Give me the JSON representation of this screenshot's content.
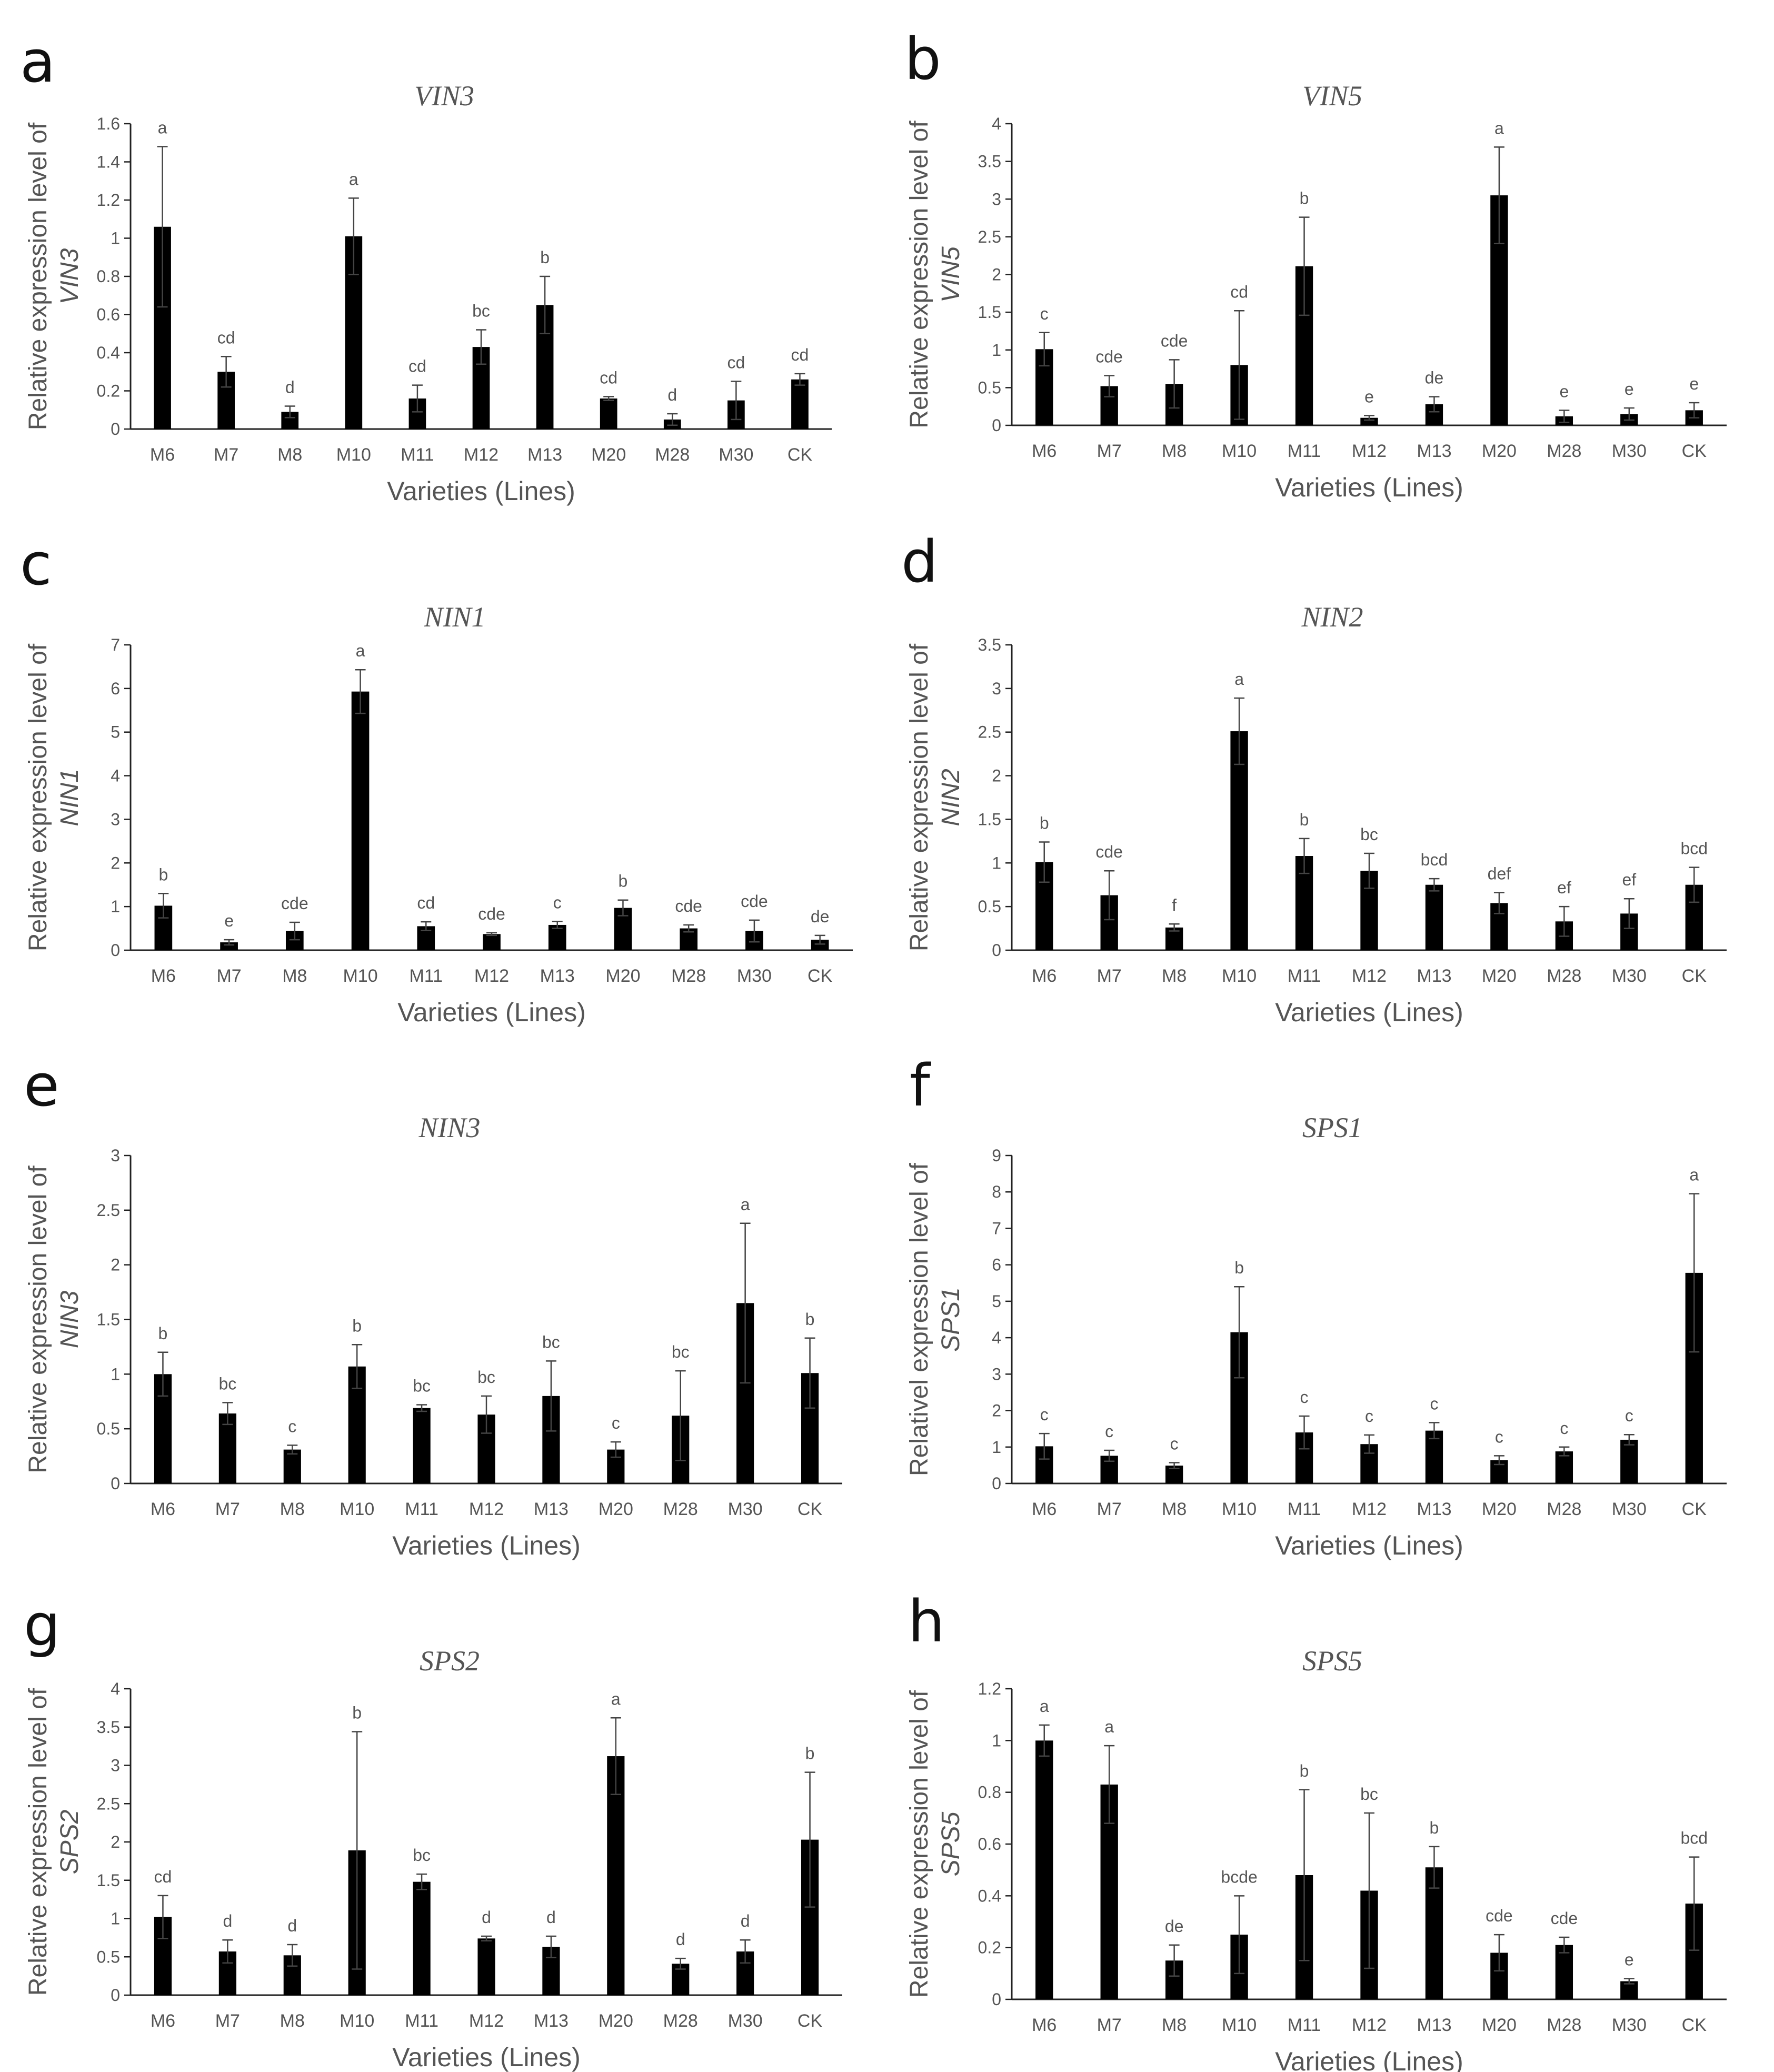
{
  "chart_data": [
    {
      "type": "bar",
      "panel": "a",
      "title": "VIN3",
      "ylabel_line1": "Relative expression level of",
      "ylabel_line2": "VIN3",
      "xlabel": "Varieties (Lines)",
      "categories": [
        "M6",
        "M7",
        "M8",
        "M10",
        "M11",
        "M12",
        "M13",
        "M20",
        "M28",
        "M30",
        "CK"
      ],
      "values": [
        1.06,
        0.3,
        0.09,
        1.01,
        0.16,
        0.43,
        0.65,
        0.16,
        0.05,
        0.15,
        0.26
      ],
      "errors": [
        0.42,
        0.08,
        0.03,
        0.2,
        0.07,
        0.09,
        0.15,
        0.01,
        0.03,
        0.1,
        0.03
      ],
      "significance": [
        "a",
        "cd",
        "d",
        "a",
        "cd",
        "bc",
        "b",
        "cd",
        "d",
        "cd",
        "cd"
      ],
      "ylim": [
        0,
        1.6
      ],
      "yticks": [
        0,
        0.2,
        0.4,
        0.6,
        0.8,
        1,
        1.2,
        1.4,
        1.6
      ],
      "ytick_labels": [
        "0",
        "0.2",
        "0.4",
        "0.6",
        "0.8",
        "1",
        "1.2",
        "1.4",
        "1.6"
      ]
    },
    {
      "type": "bar",
      "panel": "b",
      "title": "VIN5",
      "ylabel_line1": "Relative expression level of",
      "ylabel_line2": "VIN5",
      "xlabel": "Varieties (Lines)",
      "categories": [
        "M6",
        "M7",
        "M8",
        "M10",
        "M11",
        "M12",
        "M13",
        "M20",
        "M28",
        "M30",
        "CK"
      ],
      "values": [
        1.01,
        0.52,
        0.55,
        0.8,
        2.11,
        0.1,
        0.28,
        3.05,
        0.12,
        0.15,
        0.2
      ],
      "errors": [
        0.22,
        0.14,
        0.32,
        0.72,
        0.65,
        0.03,
        0.1,
        0.64,
        0.08,
        0.08,
        0.1
      ],
      "significance": [
        "c",
        "cde",
        "cde",
        "cd",
        "b",
        "e",
        "de",
        "a",
        "e",
        "e",
        "e"
      ],
      "ylim": [
        0,
        4
      ],
      "yticks": [
        0,
        0.5,
        1,
        1.5,
        2,
        2.5,
        3,
        3.5,
        4
      ],
      "ytick_labels": [
        "0",
        "0.5",
        "1",
        "1.5",
        "2",
        "2.5",
        "3",
        "3.5",
        "4"
      ]
    },
    {
      "type": "bar",
      "panel": "c",
      "title": "NIN1",
      "ylabel_line1": "Relative expression level of",
      "ylabel_line2": "NIN1",
      "xlabel": "Varieties (Lines)",
      "categories": [
        "M6",
        "M7",
        "M8",
        "M10",
        "M11",
        "M12",
        "M13",
        "M20",
        "M28",
        "M30",
        "CK"
      ],
      "values": [
        1.02,
        0.18,
        0.44,
        5.93,
        0.55,
        0.37,
        0.58,
        0.97,
        0.5,
        0.44,
        0.24
      ],
      "errors": [
        0.28,
        0.06,
        0.2,
        0.5,
        0.1,
        0.03,
        0.08,
        0.18,
        0.08,
        0.25,
        0.1
      ],
      "significance": [
        "b",
        "e",
        "cde",
        "a",
        "cd",
        "cde",
        "c",
        "b",
        "cde",
        "cde",
        "de"
      ],
      "ylim": [
        0,
        7
      ],
      "yticks": [
        0,
        1,
        2,
        3,
        4,
        5,
        6,
        7
      ],
      "ytick_labels": [
        "0",
        "1",
        "2",
        "3",
        "4",
        "5",
        "6",
        "7"
      ]
    },
    {
      "type": "bar",
      "panel": "d",
      "title": "NIN2",
      "ylabel_line1": "Relative expression level of",
      "ylabel_line2": "NIN2",
      "xlabel": "Varieties (Lines)",
      "categories": [
        "M6",
        "M7",
        "M8",
        "M10",
        "M11",
        "M12",
        "M13",
        "M20",
        "M28",
        "M30",
        "CK"
      ],
      "values": [
        1.01,
        0.63,
        0.26,
        2.51,
        1.08,
        0.91,
        0.75,
        0.54,
        0.33,
        0.42,
        0.75
      ],
      "errors": [
        0.23,
        0.28,
        0.04,
        0.38,
        0.2,
        0.2,
        0.07,
        0.12,
        0.17,
        0.17,
        0.2
      ],
      "significance": [
        "b",
        "cde",
        "f",
        "a",
        "b",
        "bc",
        "bcd",
        "def",
        "ef",
        "ef",
        "bcd"
      ],
      "ylim": [
        0,
        3.5
      ],
      "yticks": [
        0,
        0.5,
        1,
        1.5,
        2,
        2.5,
        3,
        3.5
      ],
      "ytick_labels": [
        "0",
        "0.5",
        "1",
        "1.5",
        "2",
        "2.5",
        "3",
        "3.5"
      ]
    },
    {
      "type": "bar",
      "panel": "e",
      "title": "NIN3",
      "ylabel_line1": "Relative expression level of",
      "ylabel_line2": "NIN3",
      "xlabel": "Varieties (Lines)",
      "categories": [
        "M6",
        "M7",
        "M8",
        "M10",
        "M11",
        "M12",
        "M13",
        "M20",
        "M28",
        "M30",
        "CK"
      ],
      "values": [
        1.0,
        0.64,
        0.31,
        1.07,
        0.69,
        0.63,
        0.8,
        0.31,
        0.62,
        1.65,
        1.01
      ],
      "errors": [
        0.2,
        0.1,
        0.04,
        0.2,
        0.03,
        0.17,
        0.32,
        0.07,
        0.41,
        0.73,
        0.32
      ],
      "significance": [
        "b",
        "bc",
        "c",
        "b",
        "bc",
        "bc",
        "bc",
        "c",
        "bc",
        "a",
        "b"
      ],
      "ylim": [
        0,
        3
      ],
      "yticks": [
        0,
        0.5,
        1,
        1.5,
        2,
        2.5,
        3
      ],
      "ytick_labels": [
        "0",
        "0.5",
        "1",
        "1.5",
        "2",
        "2.5",
        "3"
      ]
    },
    {
      "type": "bar",
      "panel": "f",
      "title": "SPS1",
      "ylabel_line1": "Relativel expression level of",
      "ylabel_line2": "SPS1",
      "xlabel": "Varieties (Lines)",
      "categories": [
        "M6",
        "M7",
        "M8",
        "M10",
        "M11",
        "M12",
        "M13",
        "M20",
        "M28",
        "M30",
        "CK"
      ],
      "values": [
        1.02,
        0.76,
        0.49,
        4.15,
        1.4,
        1.08,
        1.45,
        0.64,
        0.88,
        1.2,
        5.78
      ],
      "errors": [
        0.35,
        0.15,
        0.08,
        1.25,
        0.45,
        0.25,
        0.22,
        0.12,
        0.12,
        0.14,
        2.17
      ],
      "significance": [
        "c",
        "c",
        "c",
        "b",
        "c",
        "c",
        "c",
        "c",
        "c",
        "c",
        "a"
      ],
      "ylim": [
        0,
        9
      ],
      "yticks": [
        0,
        1,
        2,
        3,
        4,
        5,
        6,
        7,
        8,
        9
      ],
      "ytick_labels": [
        "0",
        "1",
        "2",
        "3",
        "4",
        "5",
        "6",
        "7",
        "8",
        "9"
      ]
    },
    {
      "type": "bar",
      "panel": "g",
      "title": "SPS2",
      "ylabel_line1": "Relative expression level of",
      "ylabel_line2": "SPS2",
      "xlabel": "Varieties (Lines)",
      "categories": [
        "M6",
        "M7",
        "M8",
        "M10",
        "M11",
        "M12",
        "M13",
        "M20",
        "M28",
        "M30",
        "CK"
      ],
      "values": [
        1.02,
        0.57,
        0.52,
        1.89,
        1.48,
        0.74,
        0.63,
        3.12,
        0.41,
        0.57,
        2.03
      ],
      "errors": [
        0.28,
        0.15,
        0.14,
        1.55,
        0.1,
        0.03,
        0.14,
        0.5,
        0.07,
        0.15,
        0.88
      ],
      "significance": [
        "cd",
        "d",
        "d",
        "b",
        "bc",
        "d",
        "d",
        "a",
        "d",
        "d",
        "b"
      ],
      "ylim": [
        0,
        4
      ],
      "yticks": [
        0,
        0.5,
        1,
        1.5,
        2,
        2.5,
        3,
        3.5,
        4
      ],
      "ytick_labels": [
        "0",
        "0.5",
        "1",
        "1.5",
        "2",
        "2.5",
        "3",
        "3.5",
        "4"
      ]
    },
    {
      "type": "bar",
      "panel": "h",
      "title": "SPS5",
      "ylabel_line1": "Relative expression level of",
      "ylabel_line2": "SPS5",
      "xlabel": "Varieties (Lines)",
      "categories": [
        "M6",
        "M7",
        "M8",
        "M10",
        "M11",
        "M12",
        "M13",
        "M20",
        "M28",
        "M30",
        "CK"
      ],
      "values": [
        1.0,
        0.83,
        0.15,
        0.25,
        0.48,
        0.42,
        0.51,
        0.18,
        0.21,
        0.07,
        0.37
      ],
      "errors": [
        0.06,
        0.15,
        0.06,
        0.15,
        0.33,
        0.3,
        0.08,
        0.07,
        0.03,
        0.01,
        0.18
      ],
      "significance": [
        "a",
        "a",
        "de",
        "bcde",
        "b",
        "bc",
        "b",
        "cde",
        "cde",
        "e",
        "bcd"
      ],
      "ylim": [
        0,
        1.2
      ],
      "yticks": [
        0,
        0.2,
        0.4,
        0.6,
        0.8,
        1,
        1.2
      ],
      "ytick_labels": [
        "0",
        "0.2",
        "0.4",
        "0.6",
        "0.8",
        "1",
        "1.2"
      ]
    }
  ]
}
